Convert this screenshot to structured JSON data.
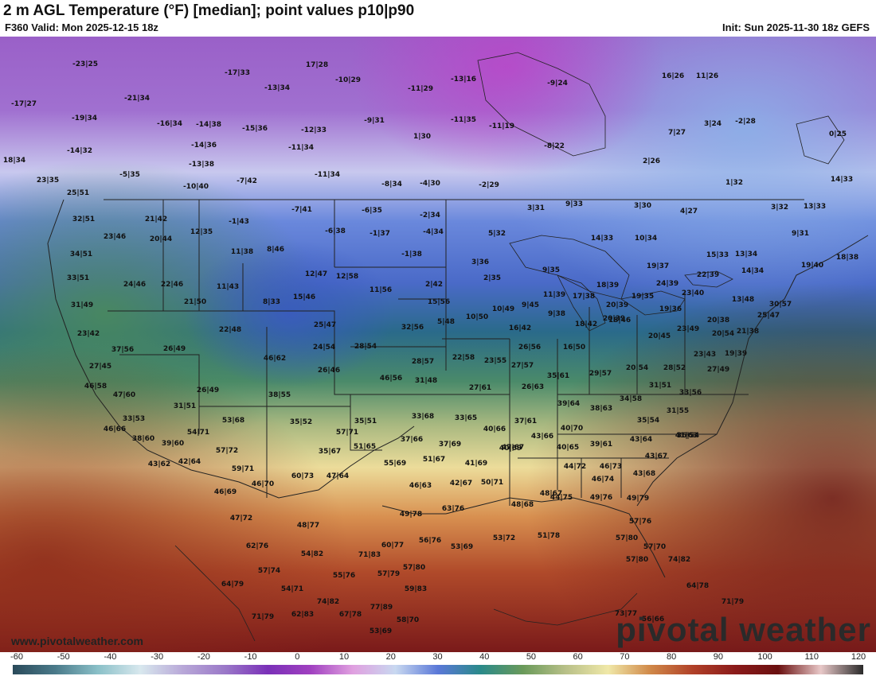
{
  "header": {
    "title": "2 m AGL Temperature (°F) [median]; point values p10|p90",
    "valid": "F360 Valid: Mon 2025-12-15 18z",
    "init": "Init: Sun 2025-11-30 18z GEFS"
  },
  "footer": {
    "site": "www.pivotalweather.com",
    "brand": "pivotal weather"
  },
  "colorbar": {
    "ticks": [
      "-60",
      "-50",
      "-40",
      "-30",
      "-20",
      "-10",
      "0",
      "10",
      "20",
      "30",
      "40",
      "50",
      "60",
      "70",
      "80",
      "90",
      "100",
      "110",
      "120"
    ],
    "colors": [
      "#2a4a5a",
      "#4a7a8a",
      "#8ac0c8",
      "#d8e8ee",
      "#b8a8d8",
      "#9a78c8",
      "#7a30b8",
      "#a040c0",
      "#e0a0e0",
      "#c8d8f0",
      "#5a78d8",
      "#2a8a8a",
      "#6a9a5a",
      "#b8c088",
      "#f0e8a8",
      "#d08848",
      "#b04028",
      "#8a1a1a",
      "#6a1010",
      "#e8c8c8",
      "#2a2a2a"
    ]
  },
  "point_values": [
    "-23|25",
    "-17|27",
    "-19|34",
    "-14|32",
    "18|34",
    "23|35",
    "-21|34",
    "-16|34",
    "-14|38",
    "-14|36",
    "-13|38",
    "-5|35",
    "-10|40",
    "-7|42",
    "-17|33",
    "-15|36",
    "-13|34",
    "17|28",
    "-10|29",
    "-11|29",
    "-13|16",
    "-12|33",
    "-11|34",
    "-9|31",
    "-11|35",
    "1|30",
    "-11|34",
    "-8|34",
    "-4|30",
    "-2|29",
    "-11|19",
    "-8|22",
    "-9|24",
    "7|27",
    "2|26",
    "16|26",
    "11|26",
    "3|24",
    "-2|28",
    "0|25",
    "1|32",
    "14|33",
    "32|51",
    "25|51",
    "34|51",
    "33|51",
    "31|49",
    "23|46",
    "21|42",
    "20|44",
    "12|35",
    "-1|43",
    "11|38",
    "8|46",
    "-7|41",
    "-6|35",
    "-6|38",
    "-1|37",
    "-2|34",
    "-4|34",
    "-1|38",
    "5|32",
    "3|31",
    "9|33",
    "3|30",
    "4|27",
    "3|32",
    "13|33",
    "9|31",
    "24|46",
    "22|46",
    "21|50",
    "11|43",
    "12|47",
    "12|58",
    "8|33",
    "15|46",
    "11|56",
    "2|42",
    "3|36",
    "2|35",
    "9|35",
    "14|33",
    "10|34",
    "19|37",
    "15|33",
    "13|34",
    "14|34",
    "19|40",
    "18|38",
    "22|39",
    "23|40",
    "24|39",
    "18|39",
    "17|38",
    "11|39",
    "19|35",
    "20|39",
    "20|39",
    "19|36",
    "23|42",
    "37|56",
    "26|49",
    "22|48",
    "25|47",
    "24|54",
    "28|54",
    "32|56",
    "15|56",
    "5|48",
    "10|50",
    "10|49",
    "9|45",
    "9|38",
    "18|42",
    "16|42",
    "13|48",
    "20|38",
    "21|38",
    "30|57",
    "25|47",
    "27|45",
    "46|58",
    "47|60",
    "46|62",
    "26|46",
    "28|57",
    "22|58",
    "23|55",
    "27|57",
    "26|56",
    "16|50",
    "18|46",
    "20|45",
    "23|49",
    "23|43",
    "19|39",
    "26|49",
    "31|51",
    "38|55",
    "46|56",
    "31|48",
    "27|61",
    "26|63",
    "35|61",
    "29|57",
    "20|54",
    "28|52",
    "27|49",
    "20|54",
    "33|53",
    "46|66",
    "53|68",
    "35|52",
    "35|51",
    "33|68",
    "33|65",
    "40|66",
    "37|61",
    "39|64",
    "38|63",
    "34|58",
    "31|51",
    "33|56",
    "31|55",
    "35|54",
    "36|54",
    "38|60",
    "39|60",
    "54|71",
    "57|71",
    "51|65",
    "35|67",
    "37|66",
    "37|69",
    "40|69",
    "43|66",
    "40|70",
    "40|65",
    "39|61",
    "43|64",
    "41|63",
    "43|62",
    "42|64",
    "57|72",
    "59|71",
    "55|69",
    "51|67",
    "41|69",
    "47|67",
    "44|72",
    "46|73",
    "43|67",
    "43|68",
    "46|69",
    "46|70",
    "60|73",
    "47|64",
    "46|63",
    "42|67",
    "50|71",
    "46|74",
    "44|75",
    "48|68",
    "48|67",
    "49|76",
    "49|79",
    "47|72",
    "48|77",
    "49|78",
    "63|76",
    "53|69",
    "53|72",
    "51|78",
    "57|76",
    "62|76",
    "60|77",
    "56|76",
    "54|82",
    "71|83",
    "57|80",
    "57|80",
    "57|70",
    "55|76",
    "57|79",
    "57|80",
    "74|82",
    "57|74",
    "54|71",
    "59|83",
    "64|78",
    "64|79",
    "74|82",
    "77|89",
    "62|83",
    "67|78",
    "71|79",
    "58|70",
    "53|69",
    "73|77",
    "56|66",
    "71|79",
    "65|83",
    "53|69",
    "67|86",
    "66|87",
    "71|79"
  ]
}
